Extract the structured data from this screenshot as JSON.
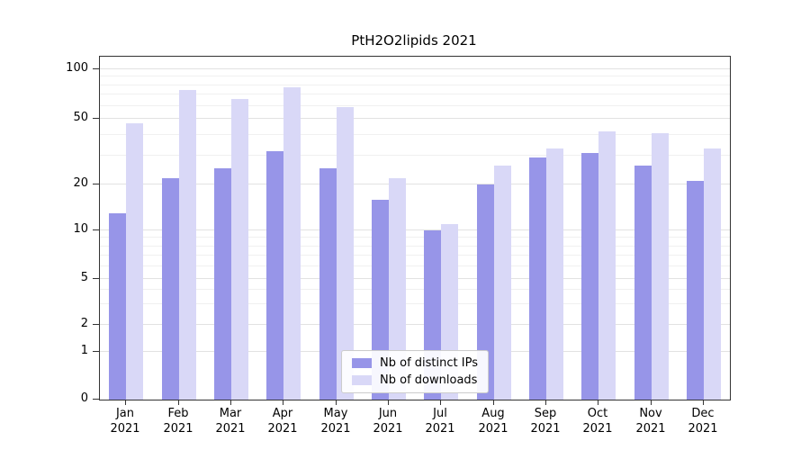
{
  "chart_data": {
    "type": "bar",
    "title": "PtH2O2lipids 2021",
    "y_scale": "symlog",
    "categories": [
      "Jan",
      "Feb",
      "Mar",
      "Apr",
      "May",
      "Jun",
      "Jul",
      "Aug",
      "Sep",
      "Oct",
      "Nov",
      "Dec"
    ],
    "year_label": "2021",
    "series": [
      {
        "name": "Nb of distinct IPs",
        "color": "#9795e8",
        "values": [
          13,
          22,
          25,
          32,
          25,
          16,
          10,
          20,
          29,
          31,
          26,
          21
        ]
      },
      {
        "name": "Nb of downloads",
        "color": "#d9d8f7",
        "values": [
          47,
          75,
          66,
          78,
          59,
          22,
          11,
          26,
          33,
          42,
          41,
          33
        ]
      }
    ],
    "yticks": [
      0,
      1,
      2,
      5,
      10,
      20,
      50,
      100
    ],
    "minor_yticks": [
      3,
      4,
      6,
      7,
      8,
      9,
      30,
      40,
      60,
      70,
      80,
      90
    ],
    "ylim": [
      0,
      120
    ],
    "grid": true,
    "legend_position": "lower center"
  },
  "colors": {
    "grid_major": "#e2e2e2",
    "grid_minor": "#f0f0f0",
    "axis": "#333333",
    "legend_border": "#cccccc",
    "text": "#000000",
    "background": "#ffffff"
  }
}
